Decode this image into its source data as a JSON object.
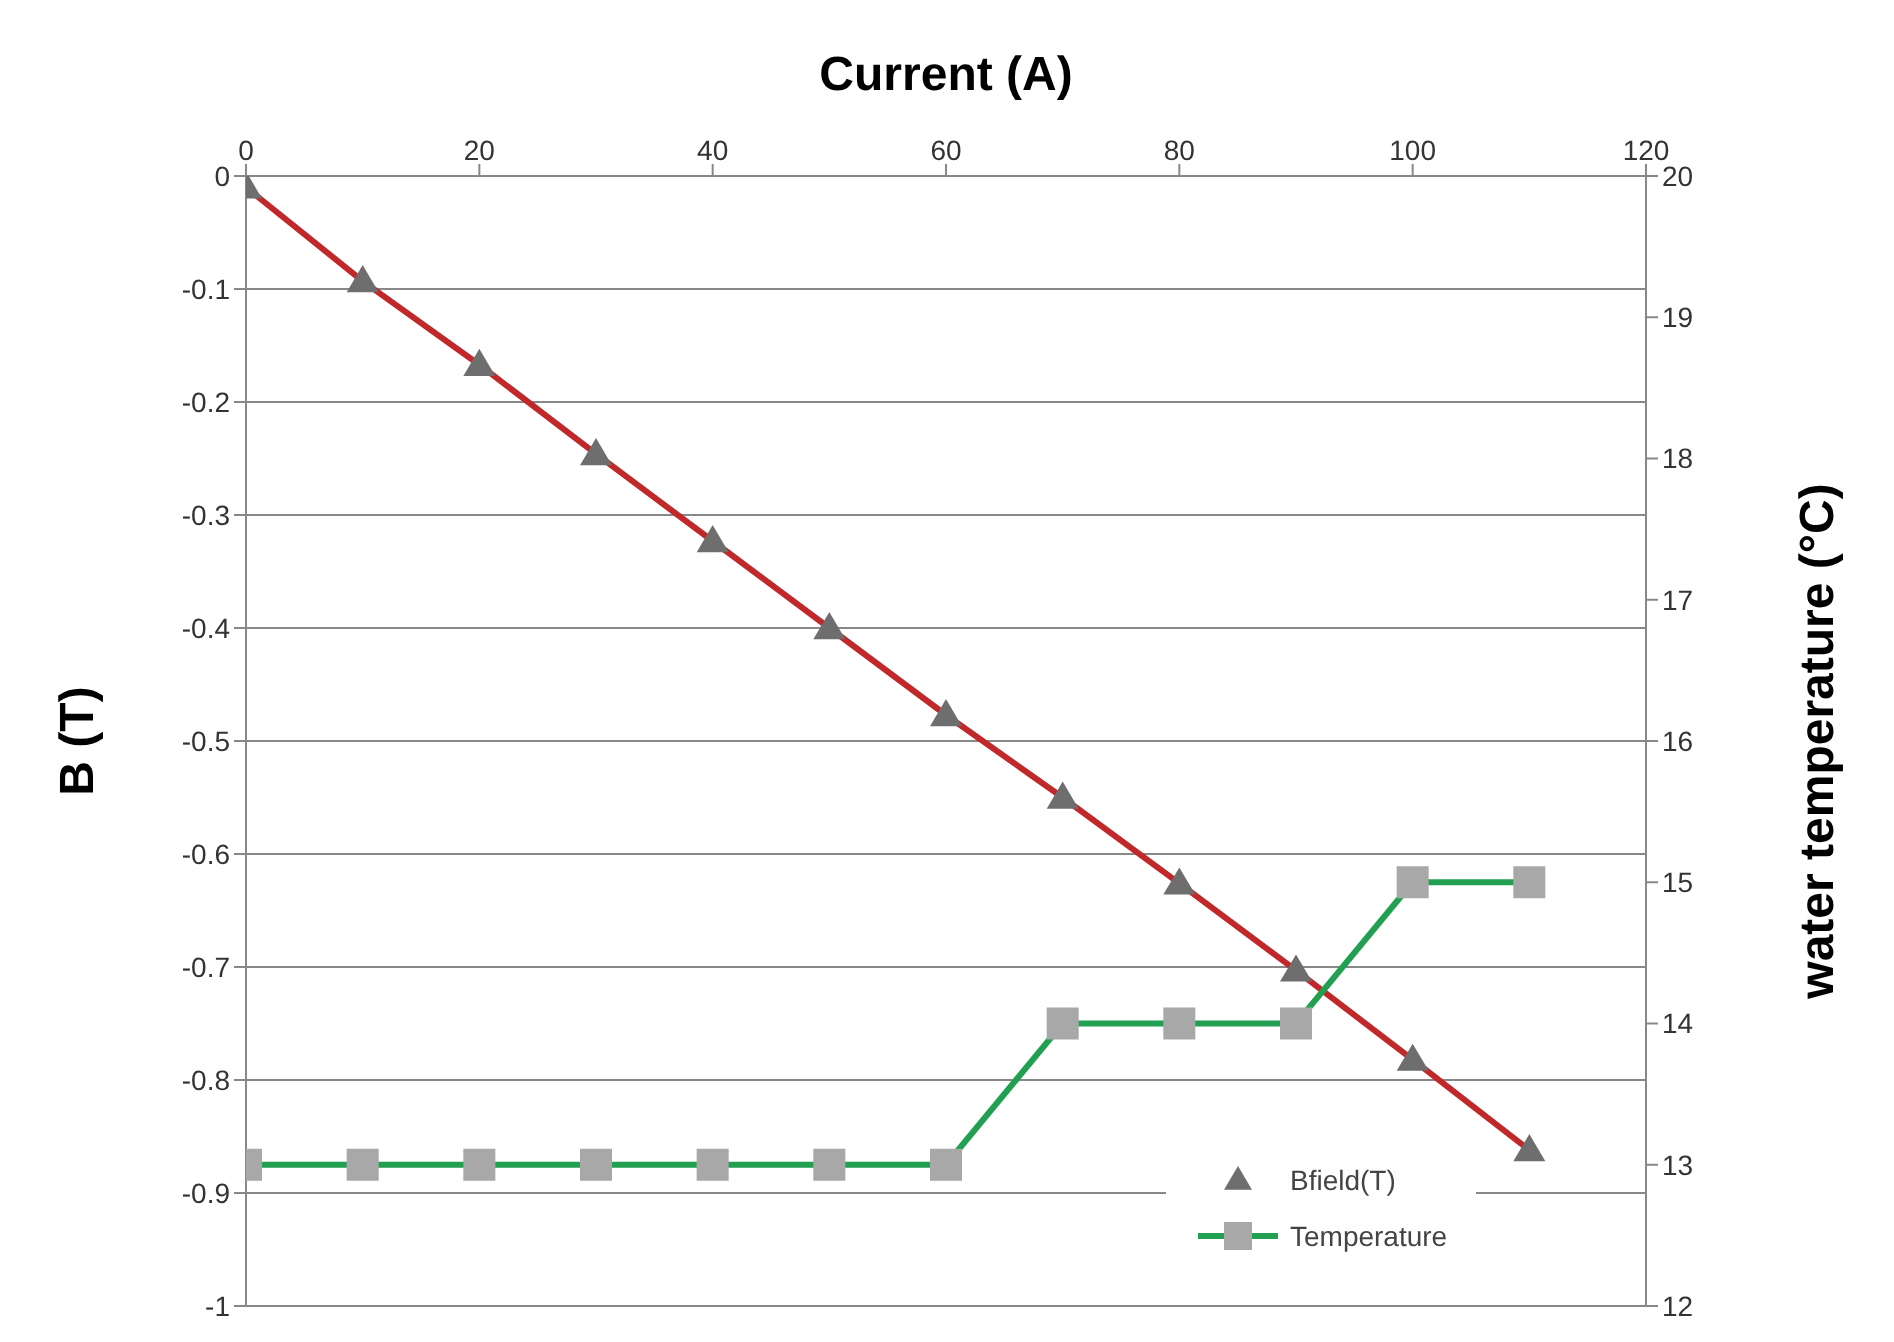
{
  "chart_data": {
    "type": "line",
    "xlabel": "Current (A)",
    "ylabel": "B (T)",
    "y2label": "water temperature (°C)",
    "x": [
      0,
      10,
      20,
      30,
      40,
      50,
      60,
      70,
      80,
      90,
      100,
      110
    ],
    "series": [
      {
        "name": "Bfield(T)",
        "color": "#c0282a",
        "marker": "triangle",
        "values": [
          -0.01,
          -0.093,
          -0.167,
          -0.246,
          -0.323,
          -0.4,
          -0.477,
          -0.55,
          -0.626,
          -0.703,
          -0.782,
          -0.862
        ]
      },
      {
        "name": "Temperature",
        "color": "#20a050",
        "marker": "square",
        "axis": "y2",
        "values": [
          13,
          13,
          13,
          13,
          13,
          13,
          13,
          14,
          14,
          14,
          15,
          15
        ]
      }
    ],
    "xlim": [
      0,
      120
    ],
    "xticks": [
      0,
      20,
      40,
      60,
      80,
      100,
      120
    ],
    "ylim": [
      -1,
      0
    ],
    "yticks": [
      -1,
      -0.9,
      -0.8,
      -0.7,
      -0.6,
      -0.5,
      -0.4,
      -0.3,
      -0.2,
      -0.1,
      0
    ],
    "y2lim": [
      12,
      20
    ],
    "y2ticks": [
      12,
      13,
      14,
      15,
      16,
      17,
      18,
      19,
      20
    ],
    "grid": "y",
    "legend": "bottom right"
  }
}
